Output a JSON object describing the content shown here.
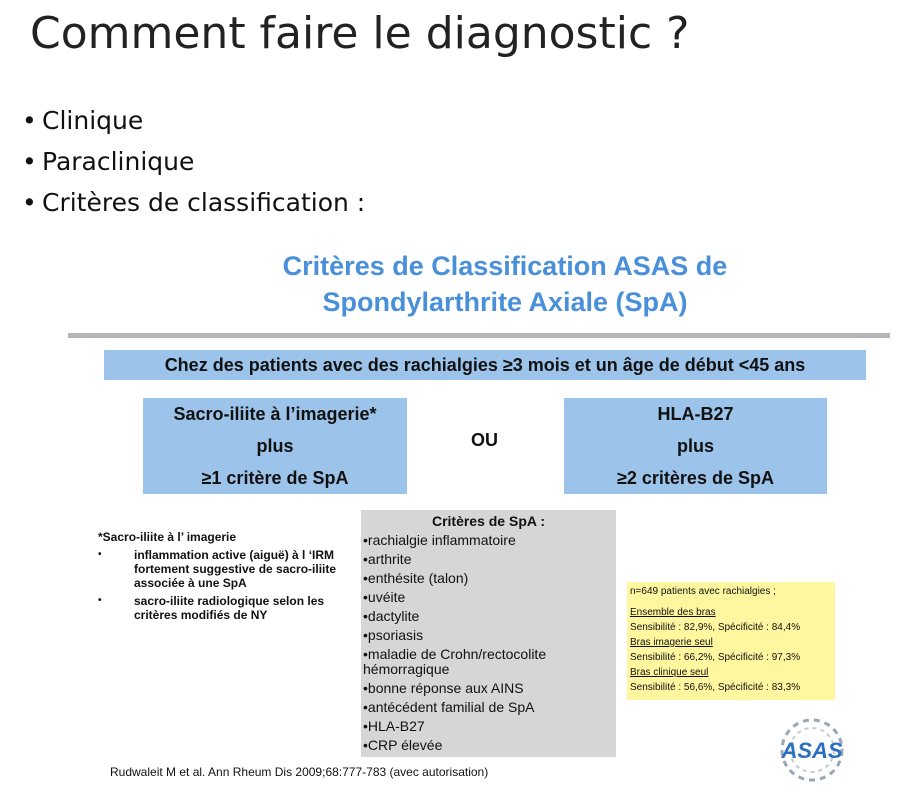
{
  "slide": {
    "title": "Comment faire le diagnostic ?",
    "bullets": [
      "Clinique",
      "Paraclinique",
      "Critères de classification  :"
    ]
  },
  "figure": {
    "title_line1": "Critères de Classification ASAS de",
    "title_line2": "Spondylarthrite Axiale (SpA)",
    "condition": "Chez des patients avec des rachialgies ≥3 mois et un âge de début <45 ans",
    "box_left": {
      "line1": "Sacro-iliite à l’imagerie*",
      "line2": "plus",
      "line3": "≥1 critère de SpA"
    },
    "connector": "OU",
    "box_right": {
      "line1": "HLA-B27",
      "line2": "plus",
      "line3": "≥2 critères de SpA"
    },
    "footnote": {
      "title": "*Sacro-iliite à l’ imagerie",
      "items": [
        "inflammation active (aiguë) à l ‘IRM fortement suggestive de sacro-iliite associée à une SpA",
        "sacro-iliite radiologique selon les critères modifiés de NY"
      ]
    },
    "spa_criteria": {
      "title": "Critères de SpA :",
      "items": [
        "•rachialgie inflammatoire",
        "•arthrite",
        "•enthésite (talon)",
        "•uvéite",
        "•dactylite",
        "•psoriasis",
        "•maladie de Crohn/rectocolite hémorragique",
        "•bonne réponse aux AINS",
        "•antécédent familial de SpA",
        "•HLA-B27",
        "•CRP élevée"
      ]
    },
    "stats": {
      "header": "n=649 patients avec rachialgies ;",
      "sections": [
        {
          "label": "Ensemble des bras",
          "value": "Sensibilité : 82,9%, Spécificité : 84,4%"
        },
        {
          "label": "Bras imagerie seul",
          "value": "Sensibilité : 66,2%, Spécificité : 97,3%"
        },
        {
          "label": "Bras clinique seul",
          "value": "Sensibilité : 56,6%, Spécificité : 83,3%"
        }
      ]
    },
    "citation": "Rudwaleit M et al. Ann Rheum Dis 2009;68:777-783 (avec autorisation)",
    "logo_text": "ASAS",
    "colors": {
      "title_blue": "#4a90d9",
      "box_blue": "#9cc3ea",
      "panel_gray": "#d6d6d6",
      "stats_yellow": "#fff7a0",
      "logo_blue": "#2a6fc0"
    }
  }
}
